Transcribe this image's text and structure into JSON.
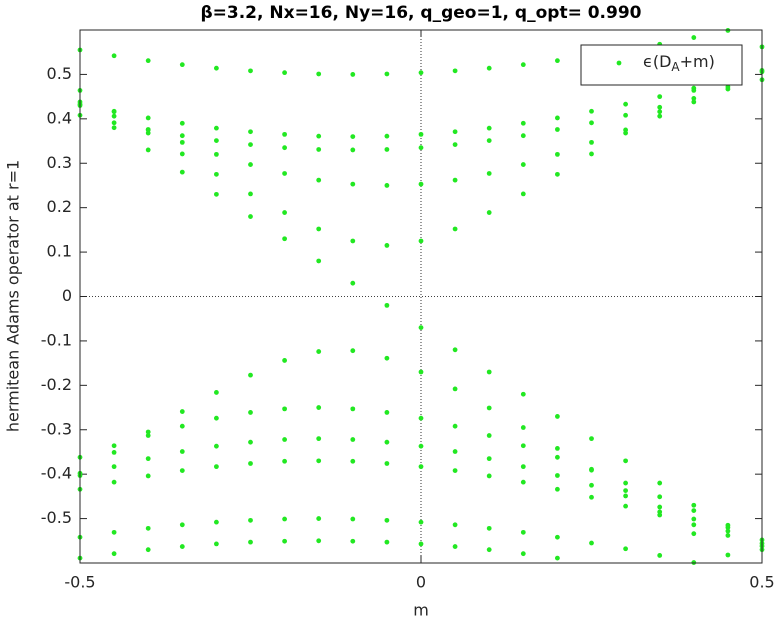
{
  "chart_data": {
    "type": "scatter",
    "title": "β=3.2, Nx=16, Ny=16, q_geo=1, q_opt= 0.990",
    "xlabel": "m",
    "ylabel": "hermitean Adams operator at r=1",
    "xlim": [
      -0.5,
      0.5
    ],
    "ylim": [
      -0.6,
      0.6
    ],
    "xticks": [
      -0.5,
      0,
      0.5
    ],
    "yticks": [
      -0.5,
      -0.4,
      -0.3,
      -0.2,
      -0.1,
      0,
      0.1,
      0.2,
      0.3,
      0.4,
      0.5
    ],
    "legend": "northeast",
    "x": [
      -0.5,
      -0.45,
      -0.4,
      -0.35,
      -0.3,
      -0.25,
      -0.2,
      -0.15,
      -0.1,
      -0.05,
      0,
      0.05,
      0.1,
      0.15,
      0.2,
      0.25,
      0.3,
      0.35,
      0.4,
      0.45,
      0.5
    ],
    "series": [
      {
        "name": "ϵ(D_A+m)",
        "color": "#22e822",
        "values": [
          [
            0.464,
            0.416,
            0.368,
            0.321,
            0.275,
            0.231,
            0.189,
            0.152,
            0.125,
            0.115,
            0.125,
            0.152,
            0.189,
            0.231,
            0.275,
            0.321,
            0.368,
            0.416,
            0.464,
            0.513,
            0.562
          ],
          [
            0.438,
            0.406,
            0.375,
            0.347,
            0.32,
            0.297,
            0.277,
            0.262,
            0.253,
            0.25,
            0.253,
            0.262,
            0.277,
            0.297,
            0.32,
            0.347,
            0.375,
            0.406,
            0.438,
            0.472,
            0.506
          ],
          [
            0.408,
            0.391,
            0.376,
            0.362,
            0.351,
            0.342,
            0.335,
            0.331,
            0.33,
            0.331,
            0.335,
            0.342,
            0.351,
            0.362,
            0.376,
            0.391,
            0.408,
            0.426,
            0.446,
            0.467,
            0.488
          ],
          [
            0.433,
            0.417,
            0.402,
            0.39,
            0.379,
            0.371,
            0.365,
            0.361,
            0.36,
            0.361,
            0.365,
            0.371,
            0.379,
            0.39,
            0.402,
            0.417,
            0.433,
            0.45,
            0.469,
            0.488,
            0.509
          ],
          [
            0.555,
            0.542,
            0.531,
            0.522,
            0.514,
            0.508,
            0.504,
            0.501,
            0.5,
            0.501,
            0.504,
            0.508,
            0.514,
            0.522,
            0.531,
            0.542,
            0.555,
            0.568,
            0.583,
            0.599,
            null
          ],
          [
            0.43,
            0.38,
            0.33,
            0.28,
            0.23,
            0.18,
            0.13,
            0.08,
            0.03,
            -0.02,
            -0.07,
            -0.12,
            -0.17,
            -0.22,
            -0.27,
            -0.32,
            -0.37,
            -0.42,
            -0.47,
            -0.52,
            -0.57
          ],
          [
            -0.398,
            -0.351,
            -0.305,
            -0.259,
            -0.216,
            -0.177,
            -0.144,
            -0.124,
            -0.122,
            -0.139,
            -0.17,
            -0.208,
            -0.251,
            -0.295,
            -0.342,
            -0.389,
            -0.437,
            -0.485,
            -0.534,
            -0.582,
            null
          ],
          [
            -0.362,
            -0.336,
            -0.313,
            -0.292,
            -0.274,
            -0.261,
            -0.253,
            -0.25,
            -0.253,
            -0.261,
            -0.274,
            -0.292,
            -0.313,
            -0.336,
            -0.362,
            -0.391,
            -0.42,
            -0.451,
            -0.482,
            -0.515,
            -0.548
          ],
          [
            -0.403,
            -0.383,
            -0.365,
            -0.349,
            -0.337,
            -0.328,
            -0.322,
            -0.32,
            -0.322,
            -0.328,
            -0.337,
            -0.349,
            -0.365,
            -0.383,
            -0.403,
            -0.425,
            -0.449,
            -0.474,
            -0.501,
            -0.528,
            -0.556
          ],
          [
            -0.434,
            -0.418,
            -0.404,
            -0.392,
            -0.383,
            -0.376,
            -0.371,
            -0.37,
            -0.371,
            -0.376,
            -0.383,
            -0.392,
            -0.404,
            -0.418,
            -0.434,
            -0.452,
            -0.472,
            -0.492,
            -0.514,
            -0.538,
            -0.562
          ],
          [
            -0.542,
            -0.531,
            -0.522,
            -0.514,
            -0.508,
            -0.504,
            -0.501,
            -0.5,
            -0.501,
            -0.504,
            -0.508,
            -0.514,
            -0.522,
            -0.531,
            -0.542,
            -0.555,
            -0.568,
            -0.583,
            -0.599,
            null,
            null
          ],
          [
            -0.589,
            -0.579,
            -0.57,
            -0.563,
            -0.557,
            -0.553,
            -0.551,
            -0.55,
            -0.551,
            -0.553,
            -0.557,
            -0.563,
            -0.57,
            -0.579,
            -0.589,
            null,
            null,
            null,
            null,
            null,
            null
          ]
        ]
      }
    ]
  }
}
